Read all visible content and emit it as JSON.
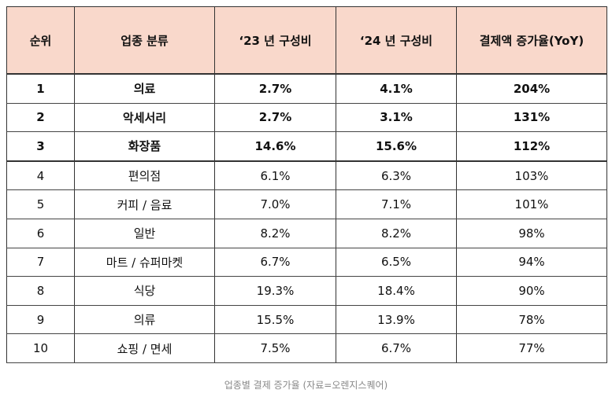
{
  "table": {
    "headers": [
      "순위",
      "업종 분류",
      "‘23 년 구성비",
      "‘24 년 구성비",
      "결제액 증가율(YoY)"
    ],
    "rows": [
      [
        "1",
        "의료",
        "2.7%",
        "4.1%",
        "204%"
      ],
      [
        "2",
        "악세서리",
        "2.7%",
        "3.1%",
        "131%"
      ],
      [
        "3",
        "화장품",
        "14.6%",
        "15.6%",
        "112%"
      ],
      [
        "4",
        "편의점",
        "6.1%",
        "6.3%",
        "103%"
      ],
      [
        "5",
        "커피 / 음료",
        "7.0%",
        "7.1%",
        "101%"
      ],
      [
        "6",
        "일반",
        "8.2%",
        "8.2%",
        "98%"
      ],
      [
        "7",
        "마트 / 슈퍼마켓",
        "6.7%",
        "6.5%",
        "94%"
      ],
      [
        "8",
        "식당",
        "19.3%",
        "18.4%",
        "90%"
      ],
      [
        "9",
        "의류",
        "15.5%",
        "13.9%",
        "78%"
      ],
      [
        "10",
        "쇼핑 / 면세",
        "7.5%",
        "6.7%",
        "77%"
      ]
    ]
  },
  "caption": "업종별 결제 증가율 (자료=오렌지스퀘어)",
  "colors": {
    "header_bg": "#f9d8cb",
    "border": "#333333",
    "caption": "#888888"
  }
}
